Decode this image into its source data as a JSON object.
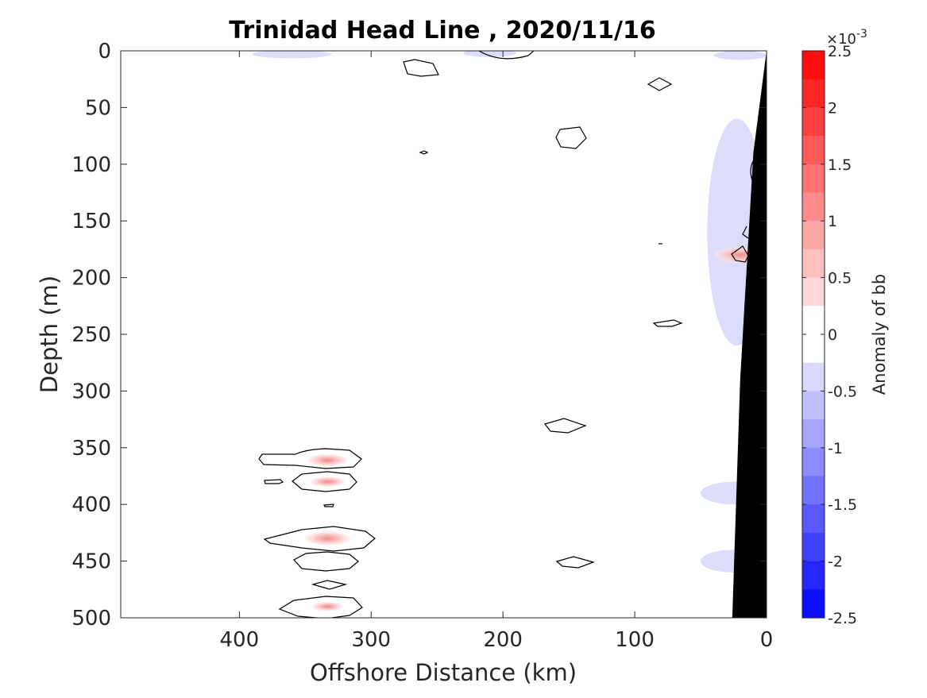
{
  "chart_data": {
    "type": "heatmap",
    "title": "Trinidad Head Line , 2020/11/16",
    "xlabel": "Offshore Distance (km)",
    "ylabel": "Depth (m)",
    "xlim": [
      490,
      0
    ],
    "ylim": [
      0,
      500
    ],
    "x_reversed": true,
    "y_reversed": true,
    "x_ticks": [
      400,
      300,
      200,
      100,
      0
    ],
    "x_tick_labels": [
      "400",
      "300",
      "200",
      "100",
      "0"
    ],
    "y_ticks": [
      0,
      50,
      100,
      150,
      200,
      250,
      300,
      350,
      400,
      450,
      500
    ],
    "y_tick_labels": [
      "0",
      "50",
      "100",
      "150",
      "200",
      "250",
      "300",
      "350",
      "400",
      "450",
      "500"
    ],
    "colorbar": {
      "label": "Anomaly of bb",
      "exponent_label": "×10",
      "exponent_power": "-3",
      "min": -2.5,
      "max": 2.5,
      "ticks": [
        2.5,
        2,
        1.5,
        1,
        0.5,
        0,
        -0.5,
        -1,
        -1.5,
        -2,
        -2.5
      ],
      "tick_labels": [
        "2.5",
        "2",
        "1.5",
        "1",
        "0.5",
        "0",
        "-0.5",
        "-1",
        "-1.5",
        "-2",
        "-2.5"
      ],
      "levels": 20,
      "colormap": "blue-white-red"
    },
    "grid": false,
    "positive_features": [
      {
        "x": 333,
        "depth": 361,
        "peak": 0.6
      },
      {
        "x": 333,
        "depth": 380,
        "peak": 0.4
      },
      {
        "x": 333,
        "depth": 430,
        "peak": 0.8
      },
      {
        "x": 333,
        "depth": 490,
        "peak": 0.3
      },
      {
        "x": 20,
        "depth": 180,
        "peak": 1.0
      }
    ],
    "negative_features": [
      {
        "x_range": [
          390,
          330
        ],
        "depth_range": [
          0,
          6
        ],
        "value": -0.4
      },
      {
        "x_range": [
          230,
          190
        ],
        "depth_range": [
          0,
          4
        ],
        "value": -0.3
      },
      {
        "x_range": [
          40,
          0
        ],
        "depth_range": [
          0,
          8
        ],
        "value": -0.3
      },
      {
        "x_range": [
          45,
          0
        ],
        "depth_range": [
          60,
          260
        ],
        "value": -0.4
      },
      {
        "x_range": [
          50,
          0
        ],
        "depth_range": [
          380,
          400
        ],
        "value": -0.3
      },
      {
        "x_range": [
          50,
          0
        ],
        "depth_range": [
          440,
          460
        ],
        "value": -0.3
      }
    ],
    "bathymetry": [
      [
        0,
        0
      ],
      [
        10,
        90
      ],
      [
        20,
        290
      ],
      [
        26,
        500
      ]
    ],
    "bathymetry_color": "#000000",
    "contour_color": "#000000"
  }
}
